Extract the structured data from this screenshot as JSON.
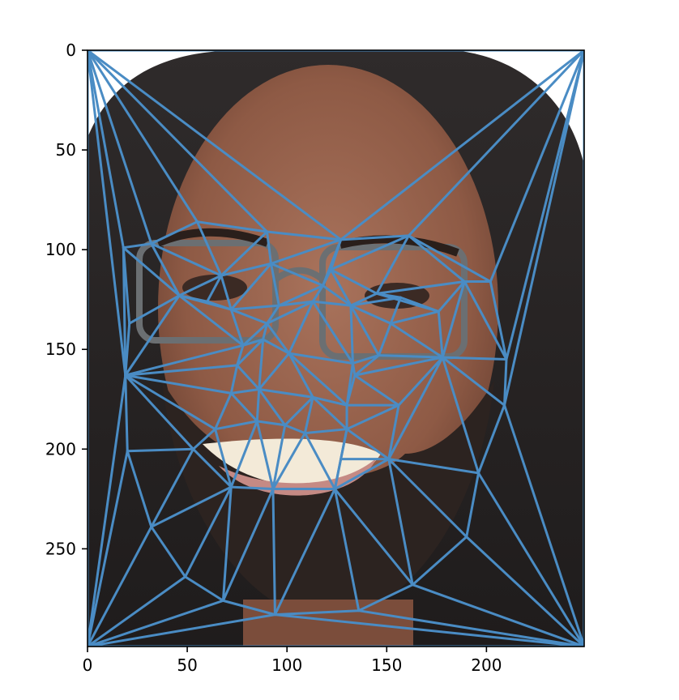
{
  "figure": {
    "kind": "image with triangulated landmark mesh",
    "image_description": "face photo",
    "mesh_color": "#4a8cc4",
    "axes_color": "#000000",
    "xlim": [
      0,
      249
    ],
    "ylim": [
      299,
      0
    ],
    "x_ticks": [
      {
        "value": 0,
        "label": "0"
      },
      {
        "value": 50,
        "label": "50"
      },
      {
        "value": 100,
        "label": "100"
      },
      {
        "value": 150,
        "label": "150"
      },
      {
        "value": 200,
        "label": "200"
      }
    ],
    "y_ticks": [
      {
        "value": 0,
        "label": "0"
      },
      {
        "value": 50,
        "label": "50"
      },
      {
        "value": 100,
        "label": "100"
      },
      {
        "value": 150,
        "label": "150"
      },
      {
        "value": 200,
        "label": "200"
      },
      {
        "value": 250,
        "label": "250"
      }
    ],
    "points": [
      [
        0,
        0
      ],
      [
        249,
        0
      ],
      [
        0,
        299
      ],
      [
        249,
        299
      ],
      [
        18,
        99
      ],
      [
        32,
        97
      ],
      [
        55,
        86
      ],
      [
        67,
        113
      ],
      [
        90,
        91
      ],
      [
        92,
        107
      ],
      [
        96,
        128
      ],
      [
        122,
        110
      ],
      [
        127,
        95
      ],
      [
        132,
        128
      ],
      [
        145,
        122
      ],
      [
        161,
        93
      ],
      [
        189,
        116
      ],
      [
        176,
        131
      ],
      [
        157,
        124
      ],
      [
        152,
        137
      ],
      [
        146,
        153
      ],
      [
        133,
        157
      ],
      [
        118,
        118
      ],
      [
        101,
        152
      ],
      [
        88,
        145
      ],
      [
        78,
        148
      ],
      [
        46,
        123
      ],
      [
        60,
        126
      ],
      [
        72,
        130
      ],
      [
        90,
        137
      ],
      [
        21,
        137
      ],
      [
        19,
        163
      ],
      [
        75,
        158
      ],
      [
        113,
        126
      ],
      [
        86,
        170
      ],
      [
        72,
        172
      ],
      [
        64,
        190
      ],
      [
        53,
        200
      ],
      [
        20,
        201
      ],
      [
        32,
        239
      ],
      [
        49,
        264
      ],
      [
        68,
        276
      ],
      [
        72,
        219
      ],
      [
        85,
        186
      ],
      [
        99,
        188
      ],
      [
        113,
        174
      ],
      [
        130,
        178
      ],
      [
        134,
        163
      ],
      [
        127,
        205
      ],
      [
        124,
        220
      ],
      [
        93,
        220
      ],
      [
        151,
        205
      ],
      [
        178,
        154
      ],
      [
        196,
        212
      ],
      [
        210,
        155
      ],
      [
        209,
        178
      ],
      [
        190,
        244
      ],
      [
        163,
        268
      ],
      [
        136,
        281
      ],
      [
        94,
        283
      ],
      [
        109,
        192
      ],
      [
        130,
        190
      ],
      [
        156,
        178
      ],
      [
        202,
        116
      ]
    ],
    "triangles": [
      [
        0,
        4,
        31
      ],
      [
        0,
        4,
        5
      ],
      [
        0,
        5,
        6
      ],
      [
        0,
        6,
        8
      ],
      [
        0,
        8,
        12
      ],
      [
        0,
        12,
        1
      ],
      [
        0,
        2,
        31
      ],
      [
        2,
        31,
        38
      ],
      [
        2,
        38,
        39
      ],
      [
        2,
        39,
        40
      ],
      [
        2,
        40,
        41
      ],
      [
        2,
        41,
        59
      ],
      [
        2,
        59,
        3
      ],
      [
        1,
        12,
        15
      ],
      [
        1,
        15,
        63
      ],
      [
        1,
        63,
        54
      ],
      [
        1,
        54,
        55
      ],
      [
        1,
        55,
        3
      ],
      [
        3,
        55,
        53
      ],
      [
        3,
        53,
        56
      ],
      [
        3,
        56,
        57
      ],
      [
        3,
        57,
        58
      ],
      [
        3,
        58,
        59
      ],
      [
        4,
        5,
        26
      ],
      [
        4,
        26,
        30
      ],
      [
        4,
        30,
        31
      ],
      [
        5,
        6,
        7
      ],
      [
        5,
        7,
        26
      ],
      [
        6,
        7,
        8
      ],
      [
        7,
        8,
        9
      ],
      [
        7,
        9,
        28
      ],
      [
        7,
        27,
        28
      ],
      [
        7,
        26,
        27
      ],
      [
        8,
        9,
        12
      ],
      [
        9,
        12,
        22
      ],
      [
        9,
        10,
        22
      ],
      [
        9,
        10,
        28
      ],
      [
        10,
        22,
        33
      ],
      [
        10,
        29,
        33
      ],
      [
        10,
        28,
        29
      ],
      [
        12,
        15,
        11
      ],
      [
        11,
        15,
        14
      ],
      [
        11,
        14,
        13
      ],
      [
        11,
        13,
        22
      ],
      [
        13,
        22,
        33
      ],
      [
        15,
        16,
        14
      ],
      [
        15,
        63,
        16
      ],
      [
        16,
        17,
        14
      ],
      [
        16,
        63,
        54
      ],
      [
        16,
        17,
        52
      ],
      [
        16,
        52,
        54
      ],
      [
        17,
        18,
        14
      ],
      [
        17,
        18,
        19
      ],
      [
        17,
        19,
        52
      ],
      [
        18,
        13,
        14
      ],
      [
        19,
        20,
        52
      ],
      [
        19,
        20,
        13
      ],
      [
        13,
        20,
        21
      ],
      [
        13,
        21,
        33
      ],
      [
        21,
        23,
        33
      ],
      [
        23,
        24,
        29
      ],
      [
        23,
        29,
        33
      ],
      [
        24,
        25,
        29
      ],
      [
        25,
        28,
        29
      ],
      [
        25,
        28,
        26
      ],
      [
        26,
        30,
        31
      ],
      [
        25,
        26,
        31
      ],
      [
        24,
        25,
        32
      ],
      [
        25,
        31,
        32
      ],
      [
        31,
        32,
        35
      ],
      [
        31,
        35,
        36
      ],
      [
        31,
        36,
        37
      ],
      [
        31,
        37,
        38
      ],
      [
        32,
        35,
        34
      ],
      [
        24,
        32,
        34
      ],
      [
        23,
        24,
        34
      ],
      [
        34,
        35,
        43
      ],
      [
        35,
        36,
        43
      ],
      [
        36,
        37,
        42
      ],
      [
        36,
        42,
        43
      ],
      [
        37,
        38,
        39
      ],
      [
        37,
        39,
        42
      ],
      [
        39,
        40,
        42
      ],
      [
        40,
        41,
        42
      ],
      [
        41,
        42,
        50
      ],
      [
        41,
        50,
        59
      ],
      [
        42,
        43,
        50
      ],
      [
        43,
        44,
        50
      ],
      [
        43,
        44,
        34
      ],
      [
        34,
        44,
        45
      ],
      [
        23,
        34,
        45
      ],
      [
        23,
        45,
        46
      ],
      [
        21,
        23,
        46
      ],
      [
        21,
        46,
        47
      ],
      [
        20,
        21,
        47
      ],
      [
        20,
        47,
        52
      ],
      [
        47,
        52,
        62
      ],
      [
        47,
        62,
        46
      ],
      [
        46,
        61,
        62
      ],
      [
        45,
        46,
        61
      ],
      [
        45,
        60,
        61
      ],
      [
        44,
        45,
        60
      ],
      [
        44,
        50,
        60
      ],
      [
        50,
        49,
        60
      ],
      [
        49,
        60,
        61
      ],
      [
        48,
        49,
        61
      ],
      [
        48,
        61,
        51
      ],
      [
        51,
        61,
        62
      ],
      [
        51,
        62,
        52
      ],
      [
        51,
        52,
        53
      ],
      [
        52,
        53,
        55
      ],
      [
        52,
        54,
        55
      ],
      [
        51,
        53,
        56
      ],
      [
        51,
        56,
        57
      ],
      [
        49,
        51,
        57
      ],
      [
        49,
        57,
        58
      ],
      [
        49,
        58,
        59
      ],
      [
        49,
        50,
        59
      ]
    ]
  }
}
